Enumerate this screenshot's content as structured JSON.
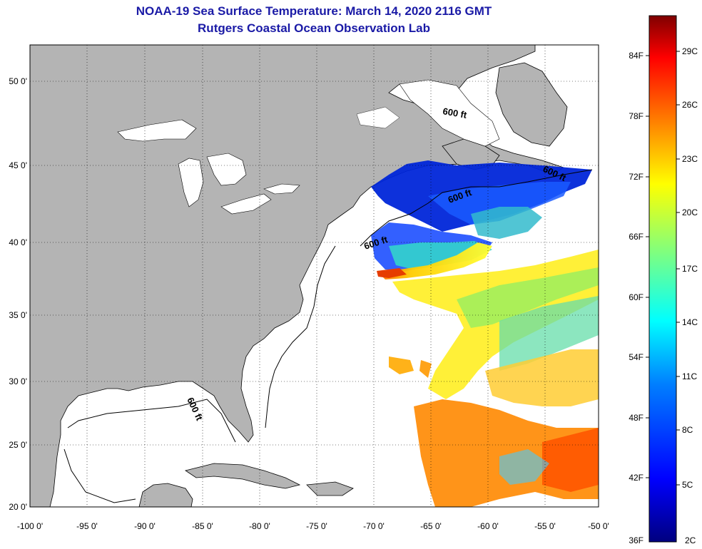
{
  "title": {
    "line1": "NOAA-19 Sea Surface Temperature:  March 14, 2020 2116 GMT",
    "line2": "Rutgers Coastal Ocean Observation Lab"
  },
  "map": {
    "lon_ticks": [
      "-100 0'",
      "-95 0'",
      "-90 0'",
      "-85 0'",
      "-80 0'",
      "-75 0'",
      "-70 0'",
      "-65 0'",
      "-60 0'",
      "-55 0'",
      "-50 0'"
    ],
    "lat_ticks": [
      "50 0'",
      "45 0'",
      "40 0'",
      "35 0'",
      "30 0'",
      "25 0'",
      "20 0'"
    ],
    "contour_labels": [
      "600 ft",
      "600 ft",
      "600 ft",
      "600 ft",
      "600 ft"
    ],
    "land_color": "#b4b4b4",
    "ocean_color": "#ffffff"
  },
  "colorbar": {
    "f_labels": [
      "84F",
      "78F",
      "72F",
      "66F",
      "60F",
      "54F",
      "48F",
      "42F",
      "36F"
    ],
    "c_labels": [
      "29C",
      "26C",
      "23C",
      "20C",
      "17C",
      "14C",
      "11C",
      "8C",
      "5C",
      "2C"
    ],
    "colors": [
      "#00007f",
      "#0000ff",
      "#007fff",
      "#00ffff",
      "#7fff7f",
      "#ffff00",
      "#ff7f00",
      "#ff0000",
      "#7f0000"
    ]
  }
}
